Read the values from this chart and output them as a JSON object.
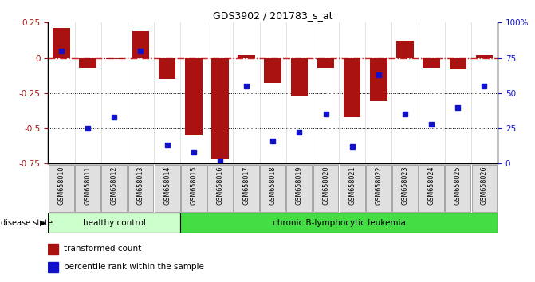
{
  "title": "GDS3902 / 201783_s_at",
  "samples": [
    "GSM658010",
    "GSM658011",
    "GSM658012",
    "GSM658013",
    "GSM658014",
    "GSM658015",
    "GSM658016",
    "GSM658017",
    "GSM658018",
    "GSM658019",
    "GSM658020",
    "GSM658021",
    "GSM658022",
    "GSM658023",
    "GSM658024",
    "GSM658025",
    "GSM658026"
  ],
  "bar_values": [
    0.21,
    -0.07,
    -0.01,
    0.19,
    -0.15,
    -0.55,
    -0.72,
    0.02,
    -0.18,
    -0.27,
    -0.07,
    -0.42,
    -0.31,
    0.12,
    -0.07,
    -0.08,
    0.02
  ],
  "dot_values": [
    80,
    25,
    33,
    80,
    13,
    8,
    2,
    55,
    16,
    22,
    35,
    12,
    63,
    35,
    28,
    40,
    55
  ],
  "ylim_left": [
    -0.75,
    0.25
  ],
  "ylim_right": [
    0,
    100
  ],
  "yticks_left": [
    0.25,
    0.0,
    -0.25,
    -0.5,
    -0.75
  ],
  "yticks_right": [
    100,
    75,
    50,
    25,
    0
  ],
  "bar_color": "#aa1111",
  "dot_color": "#1111cc",
  "hline_color": "#cc2222",
  "dotted_lines": [
    -0.25,
    -0.5
  ],
  "healthy_count": 5,
  "healthy_label": "healthy control",
  "leukemia_label": "chronic B-lymphocytic leukemia",
  "disease_state_label": "disease state",
  "legend1": "transformed count",
  "legend2": "percentile rank within the sample",
  "healthy_color": "#ccffcc",
  "leukemia_color": "#44dd44",
  "bar_width": 0.65,
  "right_ytick_labels": [
    "100%",
    "75",
    "50",
    "25",
    "0"
  ]
}
